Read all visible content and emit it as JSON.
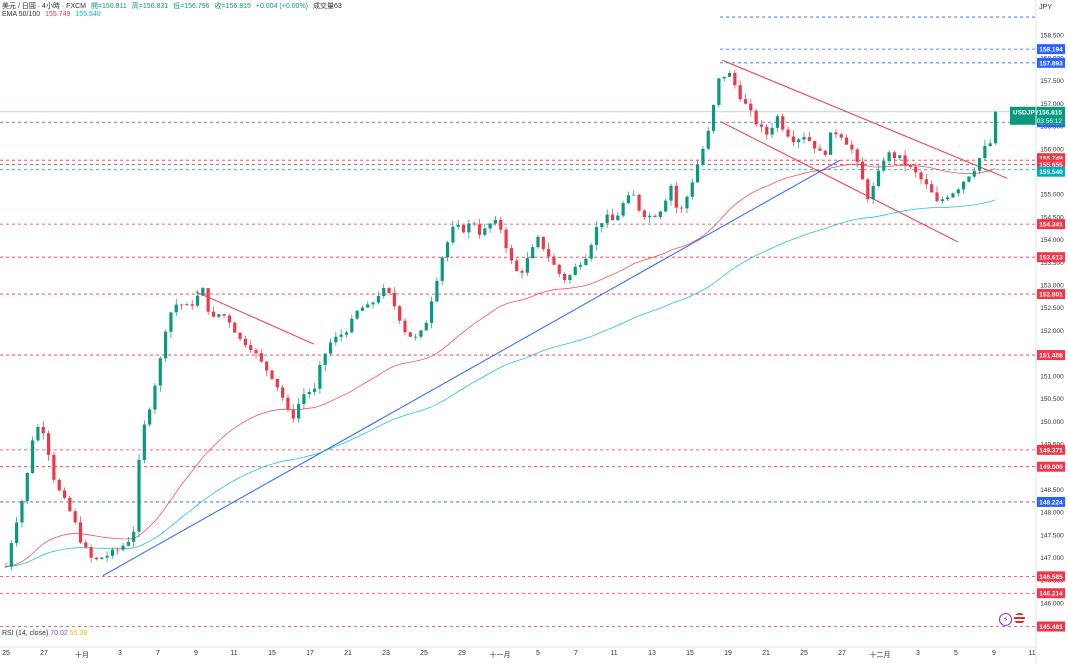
{
  "header": {
    "symbol": "美元 / 日圓 · 4小時 · FXCM",
    "open": "開=156.811",
    "high": "高=156.831",
    "low": "低=156.796",
    "close": "收=156.815",
    "change": "+0.004 (+0.00%)",
    "volume": "成交量63",
    "ema_label": "EMA 50/100",
    "ema50_value": "155.749",
    "ema100_value": "155.540"
  },
  "currency": "JPY",
  "rsi": {
    "label": "RSI (14, close)",
    "value1": "70.02",
    "value2": "55.39"
  },
  "colors": {
    "up": "#089981",
    "down": "#f23645",
    "ema50": "#f23645",
    "ema100": "#00bcd4",
    "trend_up": "#2962ff",
    "blue_level": "#2962ff",
    "red_level": "#f23645",
    "last_price": "#089981"
  },
  "chart_data": {
    "type": "candlestick",
    "title": "USD/JPY 4H FXCM",
    "ylim": [
      145.25,
      159.1
    ],
    "y_ticks": [
      "158.500",
      "158.000",
      "157.500",
      "157.000",
      "156.500",
      "156.000",
      "155.500",
      "155.000",
      "154.500",
      "154.000",
      "153.500",
      "153.000",
      "152.500",
      "152.000",
      "151.500",
      "151.000",
      "150.500",
      "150.000",
      "149.500",
      "149.000",
      "148.500",
      "148.000",
      "147.500",
      "147.000",
      "146.500",
      "146.000"
    ],
    "x_labels": [
      {
        "label": "25",
        "day": 0
      },
      {
        "label": "27",
        "day": 2
      },
      {
        "label": "十月",
        "day": 4
      },
      {
        "label": "3",
        "day": 6
      },
      {
        "label": "7",
        "day": 8
      },
      {
        "label": "9",
        "day": 10
      },
      {
        "label": "11",
        "day": 12
      },
      {
        "label": "15",
        "day": 14
      },
      {
        "label": "17",
        "day": 16
      },
      {
        "label": "21",
        "day": 18
      },
      {
        "label": "23",
        "day": 20
      },
      {
        "label": "25",
        "day": 22
      },
      {
        "label": "29",
        "day": 24
      },
      {
        "label": "十一月",
        "day": 26
      },
      {
        "label": "5",
        "day": 28
      },
      {
        "label": "7",
        "day": 30
      },
      {
        "label": "11",
        "day": 32
      },
      {
        "label": "13",
        "day": 34
      },
      {
        "label": "15",
        "day": 36
      },
      {
        "label": "19",
        "day": 38
      },
      {
        "label": "21",
        "day": 40
      },
      {
        "label": "25",
        "day": 42
      },
      {
        "label": "27",
        "day": 44
      },
      {
        "label": "十二月",
        "day": 46
      },
      {
        "label": "3",
        "day": 48
      },
      {
        "label": "5",
        "day": 50
      },
      {
        "label": "9",
        "day": 52
      },
      {
        "label": "11",
        "day": 54
      }
    ],
    "close_path": [
      [
        0,
        146.8
      ],
      [
        0.4,
        147.6
      ],
      [
        1,
        148.5
      ],
      [
        1.5,
        149.9
      ],
      [
        2,
        149.8
      ],
      [
        2.6,
        148.6
      ],
      [
        3,
        148.3
      ],
      [
        3.5,
        147.9
      ],
      [
        4,
        147.3
      ],
      [
        4.6,
        146.9
      ],
      [
        5,
        147.0
      ],
      [
        5.6,
        147.1
      ],
      [
        6,
        147.2
      ],
      [
        6.7,
        147.5
      ],
      [
        7.1,
        149.6
      ],
      [
        7.6,
        150.4
      ],
      [
        8.1,
        151.3
      ],
      [
        8.5,
        152.3
      ],
      [
        9,
        152.6
      ],
      [
        9.6,
        152.5
      ],
      [
        10,
        152.7
      ],
      [
        10.4,
        152.9
      ],
      [
        10.8,
        152.2
      ],
      [
        11.3,
        152.4
      ],
      [
        11.8,
        152.2
      ],
      [
        12.3,
        151.8
      ],
      [
        12.8,
        151.7
      ],
      [
        13.4,
        151.3
      ],
      [
        14,
        151.0
      ],
      [
        14.5,
        150.6
      ],
      [
        15,
        150.0
      ],
      [
        15.3,
        150.3
      ],
      [
        15.8,
        150.7
      ],
      [
        16.2,
        150.6
      ],
      [
        16.6,
        151.3
      ],
      [
        17,
        151.7
      ],
      [
        17.6,
        151.9
      ],
      [
        18.1,
        152.1
      ],
      [
        18.6,
        152.5
      ],
      [
        19.1,
        152.5
      ],
      [
        19.6,
        152.8
      ],
      [
        20,
        152.9
      ],
      [
        20.5,
        152.5
      ],
      [
        21,
        152.0
      ],
      [
        21.5,
        151.8
      ],
      [
        22,
        152.0
      ],
      [
        22.4,
        152.7
      ],
      [
        23,
        153.7
      ],
      [
        23.6,
        154.3
      ],
      [
        24,
        154.2
      ],
      [
        24.6,
        154.4
      ],
      [
        25,
        154.1
      ],
      [
        25.6,
        154.4
      ],
      [
        26,
        154.3
      ],
      [
        26.6,
        153.5
      ],
      [
        27,
        153.2
      ],
      [
        27.5,
        153.6
      ],
      [
        28,
        154.0
      ],
      [
        28.5,
        153.7
      ],
      [
        29,
        153.3
      ],
      [
        29.5,
        153.1
      ],
      [
        30,
        153.4
      ],
      [
        30.6,
        153.7
      ],
      [
        31,
        154.2
      ],
      [
        31.5,
        154.5
      ],
      [
        32,
        154.4
      ],
      [
        32.5,
        154.8
      ],
      [
        33,
        155.0
      ],
      [
        33.4,
        154.6
      ],
      [
        34,
        154.5
      ],
      [
        34.5,
        154.7
      ],
      [
        35,
        155.2
      ],
      [
        35.4,
        154.5
      ],
      [
        35.8,
        154.9
      ],
      [
        36.2,
        155.4
      ],
      [
        37,
        156.4
      ],
      [
        37.5,
        157.5
      ],
      [
        38,
        157.7
      ],
      [
        38.6,
        157.2
      ],
      [
        39,
        156.9
      ],
      [
        39.6,
        156.5
      ],
      [
        40,
        156.3
      ],
      [
        40.6,
        156.7
      ],
      [
        41,
        156.4
      ],
      [
        41.5,
        156.2
      ],
      [
        42,
        156.3
      ],
      [
        42.5,
        156.1
      ],
      [
        43,
        155.8
      ],
      [
        43.5,
        156.4
      ],
      [
        44,
        156.3
      ],
      [
        44.5,
        156.0
      ],
      [
        45,
        155.4
      ],
      [
        45.4,
        154.9
      ],
      [
        45.8,
        155.3
      ],
      [
        46.3,
        155.9
      ],
      [
        47,
        155.8
      ],
      [
        47.5,
        155.6
      ],
      [
        48,
        155.4
      ],
      [
        48.6,
        155.1
      ],
      [
        49,
        154.8
      ],
      [
        49.6,
        155.0
      ],
      [
        50,
        155.1
      ],
      [
        50.6,
        155.4
      ],
      [
        51,
        155.6
      ],
      [
        51.5,
        156.0
      ],
      [
        52,
        156.2
      ],
      [
        52.2,
        156.8
      ]
    ],
    "levels": [
      {
        "price": 158.9,
        "style": "blue",
        "label": ""
      },
      {
        "price": 158.194,
        "style": "blue",
        "label": "158.194"
      },
      {
        "price": 157.893,
        "style": "blue",
        "label": "157.893"
      },
      {
        "price": 156.584,
        "style": "blue",
        "label": "156.584"
      },
      {
        "price": 155.749,
        "style": "red",
        "label": "155.749"
      },
      {
        "price": 155.655,
        "style": "red",
        "label": "155.655"
      },
      {
        "price": 155.54,
        "style": "cyan",
        "label": "155.540"
      },
      {
        "price": 154.341,
        "style": "red",
        "label": "154.341"
      },
      {
        "price": 153.613,
        "style": "red",
        "label": "153.613"
      },
      {
        "price": 152.801,
        "style": "red",
        "label": "152.801"
      },
      {
        "price": 151.458,
        "style": "red",
        "label": "151.458"
      },
      {
        "price": 149.371,
        "style": "red",
        "label": "149.371"
      },
      {
        "price": 149.0,
        "style": "red",
        "label": "149.000"
      },
      {
        "price": 148.224,
        "style": "blue",
        "label": "148.224"
      },
      {
        "price": 146.585,
        "style": "red",
        "label": "146.585"
      },
      {
        "price": 146.214,
        "style": "red",
        "label": "146.214"
      },
      {
        "price": 145.481,
        "style": "red",
        "label": "145.481"
      }
    ],
    "last_price": {
      "symbol": "USDJPY",
      "price": "156.815",
      "countdown": "03:56:12",
      "value": 156.815
    },
    "trendlines": [
      {
        "color": "red",
        "from": [
          10,
          152.85
        ],
        "to": [
          16.2,
          151.7
        ]
      },
      {
        "color": "red",
        "from": [
          37.7,
          157.95
        ],
        "to": [
          52.7,
          155.35
        ]
      },
      {
        "color": "red",
        "from": [
          37.6,
          156.6
        ],
        "to": [
          50.1,
          153.95
        ]
      },
      {
        "color": "blue",
        "from": [
          5.1,
          146.6
        ],
        "to": [
          43.9,
          155.75
        ]
      }
    ]
  }
}
